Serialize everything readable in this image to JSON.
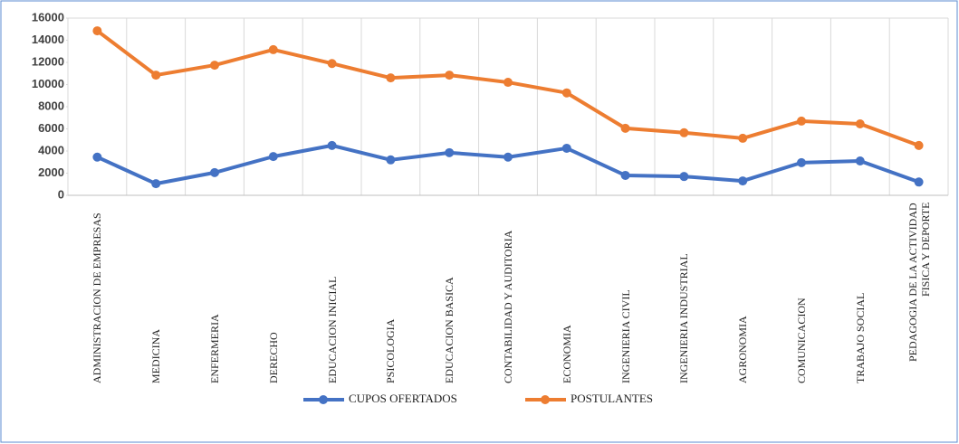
{
  "chart_data": {
    "type": "line",
    "categories": [
      "ADMINISTRACION DE EMPRESAS",
      "MEDICINA",
      "ENFERMERIA",
      "DERECHO",
      "EDUCACION INICIAL",
      "PSICOLOGIA",
      "EDUCACION BASICA",
      "CONTABILIDAD Y AUDITORIA",
      "ECONOMIA",
      "INGENIERIA CIVIL",
      "INGENIERIA INDUSTRIAL",
      "AGRONOMIA",
      "COMUNICACION",
      "TRABAJO SOCIAL",
      "PEDAGOGIA DE LA ACTIVIDAD FISICA Y DEPORTE"
    ],
    "series": [
      {
        "name": "CUPOS OFERTADOS",
        "color": "#4472c4",
        "values": [
          3450,
          1050,
          2050,
          3500,
          4500,
          3200,
          3850,
          3450,
          4250,
          1800,
          1700,
          1300,
          2950,
          3100,
          1200
        ]
      },
      {
        "name": "POSTULANTES",
        "color": "#ed7d31",
        "values": [
          14850,
          10850,
          11750,
          13150,
          11900,
          10600,
          10850,
          10200,
          9250,
          6050,
          5650,
          5150,
          6700,
          6450,
          4500
        ]
      }
    ],
    "ylim": [
      0,
      16000
    ],
    "yticks": [
      0,
      2000,
      4000,
      6000,
      8000,
      10000,
      12000,
      14000,
      16000
    ],
    "legend": "bottom"
  }
}
